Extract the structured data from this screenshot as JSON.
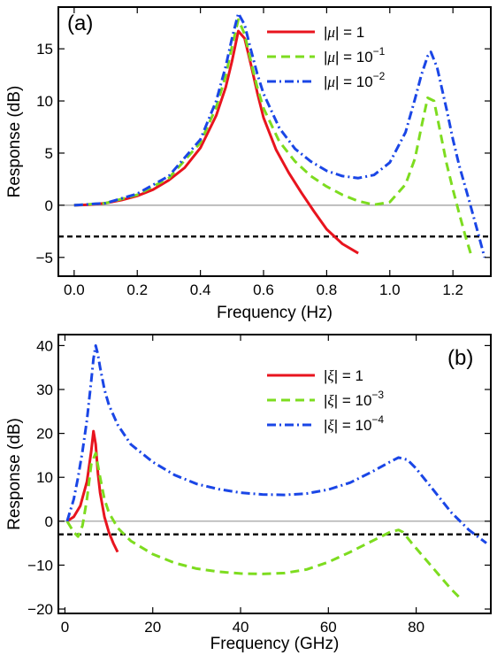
{
  "chart_data": [
    {
      "type": "line",
      "panel_label": "(a)",
      "xlabel": "Frequency (Hz)",
      "ylabel": "Response (dB)",
      "xlim": [
        -0.05,
        1.32
      ],
      "ylim": [
        -6.8,
        19.0
      ],
      "xticks": [
        0.0,
        0.2,
        0.4,
        0.6,
        0.8,
        1.0,
        1.2
      ],
      "xtick_labels": [
        "0.0",
        "0.2",
        "0.4",
        "0.6",
        "0.8",
        "1.0",
        "1.2"
      ],
      "yticks": [
        -5,
        0,
        5,
        10,
        15
      ],
      "ytick_labels": [
        "−5",
        "0",
        "5",
        "10",
        "15"
      ],
      "grid": false,
      "legend_position": "top-right",
      "reference_lines": [
        {
          "kind": "solid-gray",
          "y": 0,
          "color": "#999999"
        },
        {
          "kind": "dashed-black",
          "y": -3,
          "color": "#000000"
        }
      ],
      "series": [
        {
          "name": "|μ| = 1",
          "label_parts": {
            "pre": "|",
            "sym": "μ",
            "post": "| = 1",
            "sup": ""
          },
          "color": "#e8141e",
          "style": "solid",
          "x": [
            0.0,
            0.05,
            0.1,
            0.15,
            0.2,
            0.25,
            0.3,
            0.35,
            0.4,
            0.45,
            0.48,
            0.5,
            0.52,
            0.54,
            0.56,
            0.58,
            0.6,
            0.64,
            0.68,
            0.72,
            0.76,
            0.8,
            0.85,
            0.9
          ],
          "y": [
            0.0,
            0.05,
            0.2,
            0.5,
            0.9,
            1.5,
            2.4,
            3.6,
            5.5,
            8.6,
            11.3,
            13.8,
            16.7,
            16.0,
            13.5,
            10.8,
            8.4,
            5.3,
            3.1,
            1.2,
            -0.6,
            -2.3,
            -3.7,
            -4.6
          ]
        },
        {
          "name": "|μ| = 10⁻¹",
          "label_parts": {
            "pre": "|",
            "sym": "μ",
            "post": "| = 10",
            "sup": "−1"
          },
          "color": "#7ddc1f",
          "style": "dashed",
          "x": [
            0.0,
            0.1,
            0.2,
            0.3,
            0.4,
            0.45,
            0.48,
            0.5,
            0.52,
            0.54,
            0.56,
            0.58,
            0.6,
            0.65,
            0.7,
            0.75,
            0.8,
            0.85,
            0.9,
            0.95,
            1.0,
            1.05,
            1.08,
            1.1,
            1.12,
            1.14,
            1.16,
            1.18,
            1.2,
            1.22,
            1.24,
            1.26
          ],
          "y": [
            0.0,
            0.2,
            1.0,
            2.6,
            6.0,
            9.4,
            12.4,
            15.2,
            17.8,
            16.4,
            13.8,
            11.3,
            9.3,
            6.1,
            4.2,
            2.8,
            1.8,
            1.0,
            0.4,
            0.05,
            0.3,
            2.0,
            4.5,
            7.5,
            10.3,
            10.0,
            7.0,
            4.0,
            1.5,
            -0.8,
            -3.0,
            -5.0
          ]
        },
        {
          "name": "|μ| = 10⁻²",
          "label_parts": {
            "pre": "|",
            "sym": "μ",
            "post": "| = 10",
            "sup": "−2"
          },
          "color": "#1a46e6",
          "style": "dashdot",
          "x": [
            0.0,
            0.1,
            0.2,
            0.3,
            0.4,
            0.45,
            0.48,
            0.5,
            0.52,
            0.54,
            0.56,
            0.58,
            0.6,
            0.65,
            0.7,
            0.75,
            0.8,
            0.85,
            0.9,
            0.95,
            1.0,
            1.05,
            1.08,
            1.1,
            1.12,
            1.13,
            1.15,
            1.18,
            1.2,
            1.22,
            1.25,
            1.28,
            1.3
          ],
          "y": [
            0.0,
            0.2,
            1.1,
            2.8,
            6.3,
            10.0,
            13.3,
            16.0,
            18.4,
            17.3,
            14.9,
            12.6,
            10.7,
            7.4,
            5.4,
            4.2,
            3.3,
            2.8,
            2.6,
            2.9,
            4.1,
            7.0,
            10.2,
            12.5,
            14.3,
            14.7,
            13.2,
            9.2,
            6.3,
            3.8,
            0.6,
            -2.7,
            -5.0
          ]
        }
      ]
    },
    {
      "type": "line",
      "panel_label": "(b)",
      "xlabel": "Frequency (GHz)",
      "ylabel": "Response (dB)",
      "xlim": [
        -1.5,
        97.0
      ],
      "ylim": [
        -21.0,
        42.5
      ],
      "xticks": [
        0,
        20,
        40,
        60,
        80
      ],
      "xtick_labels": [
        "0",
        "20",
        "40",
        "60",
        "80"
      ],
      "yticks": [
        -20,
        -10,
        0,
        10,
        20,
        30,
        40
      ],
      "ytick_labels": [
        "−20",
        "−10",
        "0",
        "10",
        "20",
        "30",
        "40"
      ],
      "grid": false,
      "legend_position": "top-center",
      "reference_lines": [
        {
          "kind": "solid-gray",
          "y": 0,
          "color": "#999999"
        },
        {
          "kind": "dashed-black",
          "y": -3,
          "color": "#000000"
        }
      ],
      "series": [
        {
          "name": "|ξ| = 1",
          "label_parts": {
            "pre": "|",
            "sym": "ξ",
            "post": "| = 1",
            "sup": ""
          },
          "color": "#e8141e",
          "style": "solid",
          "x": [
            0.5,
            2,
            3.5,
            5,
            6,
            6.5,
            7,
            7.5,
            8,
            9,
            10,
            11,
            12
          ],
          "y": [
            0.0,
            1.0,
            3.5,
            9.0,
            16.0,
            20.5,
            17.5,
            11.0,
            6.5,
            1.0,
            -2.5,
            -5.0,
            -7.0
          ]
        },
        {
          "name": "|ξ| = 10⁻³",
          "label_parts": {
            "pre": "|",
            "sym": "ξ",
            "post": "| = 10",
            "sup": "−3"
          },
          "color": "#7ddc1f",
          "style": "dashed",
          "x": [
            0.5,
            2,
            3,
            4,
            5,
            6,
            7,
            8,
            9,
            10,
            12,
            15,
            20,
            25,
            30,
            35,
            40,
            45,
            50,
            55,
            60,
            65,
            70,
            74,
            76,
            77,
            79,
            82,
            85,
            88,
            90
          ],
          "y": [
            0.0,
            -2.5,
            -3.5,
            -1.0,
            5.0,
            13.0,
            15.5,
            10.0,
            5.0,
            2.0,
            -1.5,
            -4.5,
            -7.5,
            -9.5,
            -10.8,
            -11.5,
            -11.9,
            -12.0,
            -11.8,
            -11.0,
            -9.3,
            -7.0,
            -4.5,
            -2.5,
            -2.0,
            -2.5,
            -5.0,
            -8.5,
            -12.0,
            -15.5,
            -17.5
          ]
        },
        {
          "name": "|ξ| = 10⁻⁴",
          "label_parts": {
            "pre": "|",
            "sym": "ξ",
            "post": "| = 10",
            "sup": "−4"
          },
          "color": "#1a46e6",
          "style": "dashdot",
          "x": [
            0.5,
            2,
            3,
            4,
            5,
            6,
            6.5,
            7,
            7.5,
            8,
            9,
            10,
            12,
            15,
            20,
            25,
            30,
            35,
            40,
            45,
            50,
            55,
            60,
            65,
            70,
            74,
            76,
            78,
            80,
            84,
            88,
            92,
            96
          ],
          "y": [
            0.0,
            5.0,
            10.0,
            16.0,
            23.0,
            32.0,
            37.0,
            40.0,
            38.0,
            35.0,
            30.0,
            26.5,
            22.0,
            17.5,
            13.5,
            10.5,
            8.5,
            7.3,
            6.5,
            6.1,
            6.0,
            6.3,
            7.2,
            8.8,
            11.3,
            13.5,
            14.5,
            14.0,
            12.0,
            7.0,
            2.0,
            -2.0,
            -5.0
          ]
        }
      ]
    }
  ]
}
